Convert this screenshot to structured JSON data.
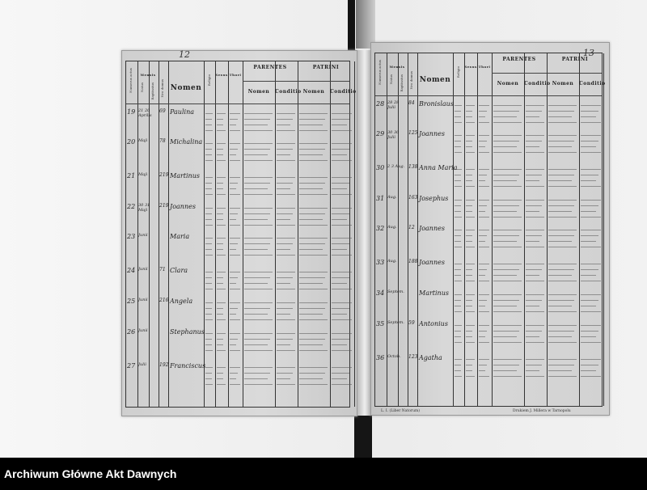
{
  "footer": {
    "archive_name": "Archiwum Główne Akt Dawnych"
  },
  "register": {
    "headers": {
      "numerus": "Numerus actus",
      "mensis": "Mensis",
      "natus": "Natus",
      "baptisatus": "Baptisatus",
      "domus": "Nro domus",
      "nomen": "Nomen",
      "religio": "Religio",
      "sexus": "Sexus",
      "thori": "Thori",
      "parentes": "PARENTES",
      "patrini": "PATRINI",
      "sub_nomen": "Nomen",
      "conditio": "Conditio"
    },
    "left_page": {
      "folio": "12",
      "rows": [
        {
          "no": "19",
          "date": "21 20 Aprilis",
          "house": "69",
          "name": "Paulina"
        },
        {
          "no": "20",
          "date": "Maji",
          "house": "78",
          "name": "Michalina"
        },
        {
          "no": "21",
          "date": "Maji",
          "house": "219",
          "name": "Martinus"
        },
        {
          "no": "22",
          "date": "30 31 Maji",
          "house": "219",
          "name": "Joannes"
        },
        {
          "no": "23",
          "date": "Junii",
          "house": "",
          "name": "Maria"
        },
        {
          "no": "24",
          "date": "Junii",
          "house": "71",
          "name": "Clara"
        },
        {
          "no": "25",
          "date": "Junii",
          "house": "216",
          "name": "Angela"
        },
        {
          "no": "26",
          "date": "Junii",
          "house": "",
          "name": "Stephanus"
        },
        {
          "no": "27",
          "date": "Julii",
          "house": "192",
          "name": "Franciscus"
        }
      ],
      "footer_note": ""
    },
    "right_page": {
      "folio": "13",
      "rows": [
        {
          "no": "28",
          "date": "28 28 Julii",
          "house": "84",
          "name": "Bronislaus"
        },
        {
          "no": "29",
          "date": "30 30 Julii",
          "house": "125",
          "name": "Joannes"
        },
        {
          "no": "30",
          "date": "2 3 Aug.",
          "house": "138",
          "name": "Anna Maria"
        },
        {
          "no": "31",
          "date": "Aug.",
          "house": "163",
          "name": "Josephus"
        },
        {
          "no": "32",
          "date": "Aug.",
          "house": "12",
          "name": "Joannes"
        },
        {
          "no": "33",
          "date": "Aug.",
          "house": "188",
          "name": "Joannes"
        },
        {
          "no": "34",
          "date": "Septem.",
          "house": "",
          "name": "Martinus"
        },
        {
          "no": "35",
          "date": "Septem.",
          "house": "59",
          "name": "Antonius"
        },
        {
          "no": "36",
          "date": "Octob.",
          "house": "123",
          "name": "Agatha"
        }
      ],
      "footer_left": "L. I. (Liber Natorum)",
      "footer_right": "Drukiem J. Millera w Tarnopolu"
    }
  }
}
